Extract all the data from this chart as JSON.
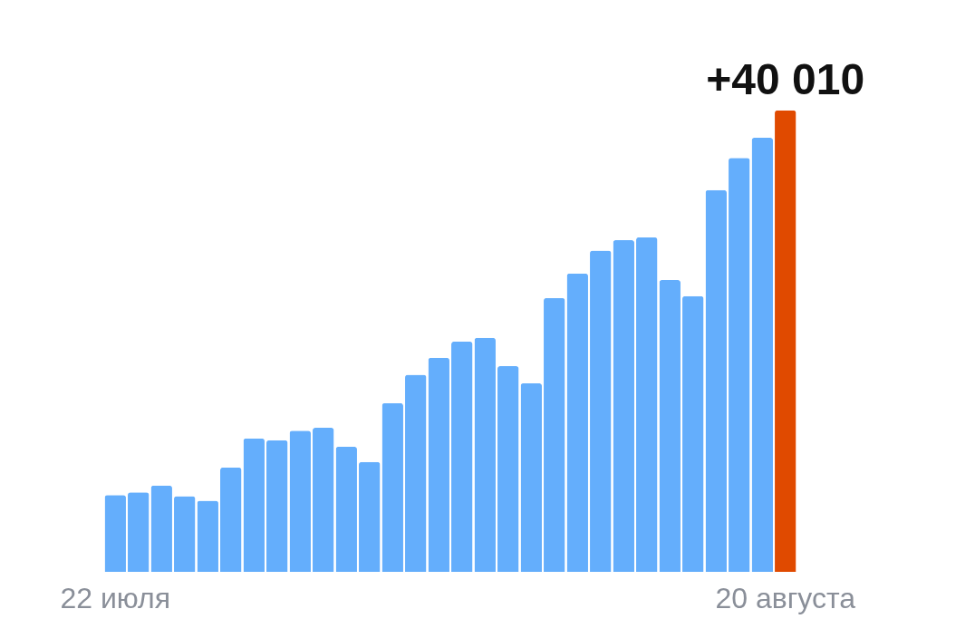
{
  "chart_data": {
    "type": "bar",
    "categories": [
      "22 июля",
      null,
      null,
      null,
      null,
      null,
      null,
      null,
      null,
      null,
      null,
      null,
      null,
      null,
      null,
      null,
      null,
      null,
      null,
      null,
      null,
      null,
      null,
      null,
      null,
      null,
      null,
      null,
      null,
      "20 августа"
    ],
    "values": [
      6650,
      6900,
      7480,
      6570,
      6160,
      9040,
      11580,
      11420,
      12240,
      12490,
      10850,
      9530,
      14620,
      17090,
      18570,
      19960,
      20290,
      17830,
      16350,
      23740,
      25880,
      27850,
      28760,
      29000,
      25300,
      23910,
      33110,
      35900,
      37630,
      40010
    ],
    "colors": [
      "#64aefc",
      "#64aefc",
      "#64aefc",
      "#64aefc",
      "#64aefc",
      "#64aefc",
      "#64aefc",
      "#64aefc",
      "#64aefc",
      "#64aefc",
      "#64aefc",
      "#64aefc",
      "#64aefc",
      "#64aefc",
      "#64aefc",
      "#64aefc",
      "#64aefc",
      "#64aefc",
      "#64aefc",
      "#64aefc",
      "#64aefc",
      "#64aefc",
      "#64aefc",
      "#64aefc",
      "#64aefc",
      "#64aefc",
      "#64aefc",
      "#64aefc",
      "#64aefc",
      "#e04a00"
    ],
    "value_labels": [
      null,
      null,
      null,
      null,
      null,
      null,
      null,
      null,
      null,
      null,
      null,
      null,
      null,
      null,
      null,
      null,
      null,
      null,
      null,
      null,
      null,
      null,
      null,
      null,
      null,
      null,
      null,
      null,
      null,
      "+40 010"
    ]
  }
}
